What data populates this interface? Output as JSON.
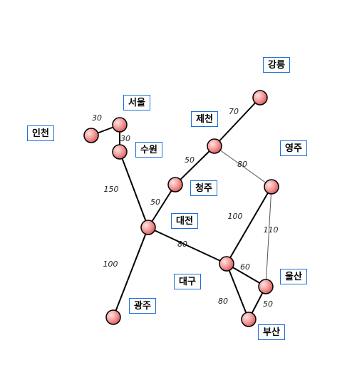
{
  "cities": [
    {
      "id": "incheon",
      "label": "인천"
    },
    {
      "id": "seoul",
      "label": "서울"
    },
    {
      "id": "suwon",
      "label": "수원"
    },
    {
      "id": "gangneung",
      "label": "강릉"
    },
    {
      "id": "jecheon",
      "label": "제천"
    },
    {
      "id": "yeongju",
      "label": "영주"
    },
    {
      "id": "cheongju",
      "label": "청주"
    },
    {
      "id": "daejeon",
      "label": "대전"
    },
    {
      "id": "daegu",
      "label": "대구"
    },
    {
      "id": "ulsan",
      "label": "울산"
    },
    {
      "id": "gwangju",
      "label": "광주"
    },
    {
      "id": "busan",
      "label": "부산"
    }
  ],
  "edges": [
    {
      "from": "incheon",
      "to": "seoul",
      "weight": "30"
    },
    {
      "from": "seoul",
      "to": "suwon",
      "weight": "30"
    },
    {
      "from": "suwon",
      "to": "daejeon",
      "weight": "150"
    },
    {
      "from": "cheongju",
      "to": "daejeon",
      "weight": "50"
    },
    {
      "from": "jecheon",
      "to": "cheongju",
      "weight": "50"
    },
    {
      "from": "jecheon",
      "to": "gangneung",
      "weight": "70"
    },
    {
      "from": "jecheon",
      "to": "yeongju",
      "weight": "80"
    },
    {
      "from": "yeongju",
      "to": "daegu",
      "weight": "100"
    },
    {
      "from": "yeongju",
      "to": "ulsan",
      "weight": "110"
    },
    {
      "from": "daejeon",
      "to": "daegu",
      "weight": "80"
    },
    {
      "from": "daejeon",
      "to": "gwangju",
      "weight": "100"
    },
    {
      "from": "daegu",
      "to": "ulsan",
      "weight": "60"
    },
    {
      "from": "daegu",
      "to": "busan",
      "weight": "80"
    },
    {
      "from": "ulsan",
      "to": "busan",
      "weight": "50"
    }
  ]
}
